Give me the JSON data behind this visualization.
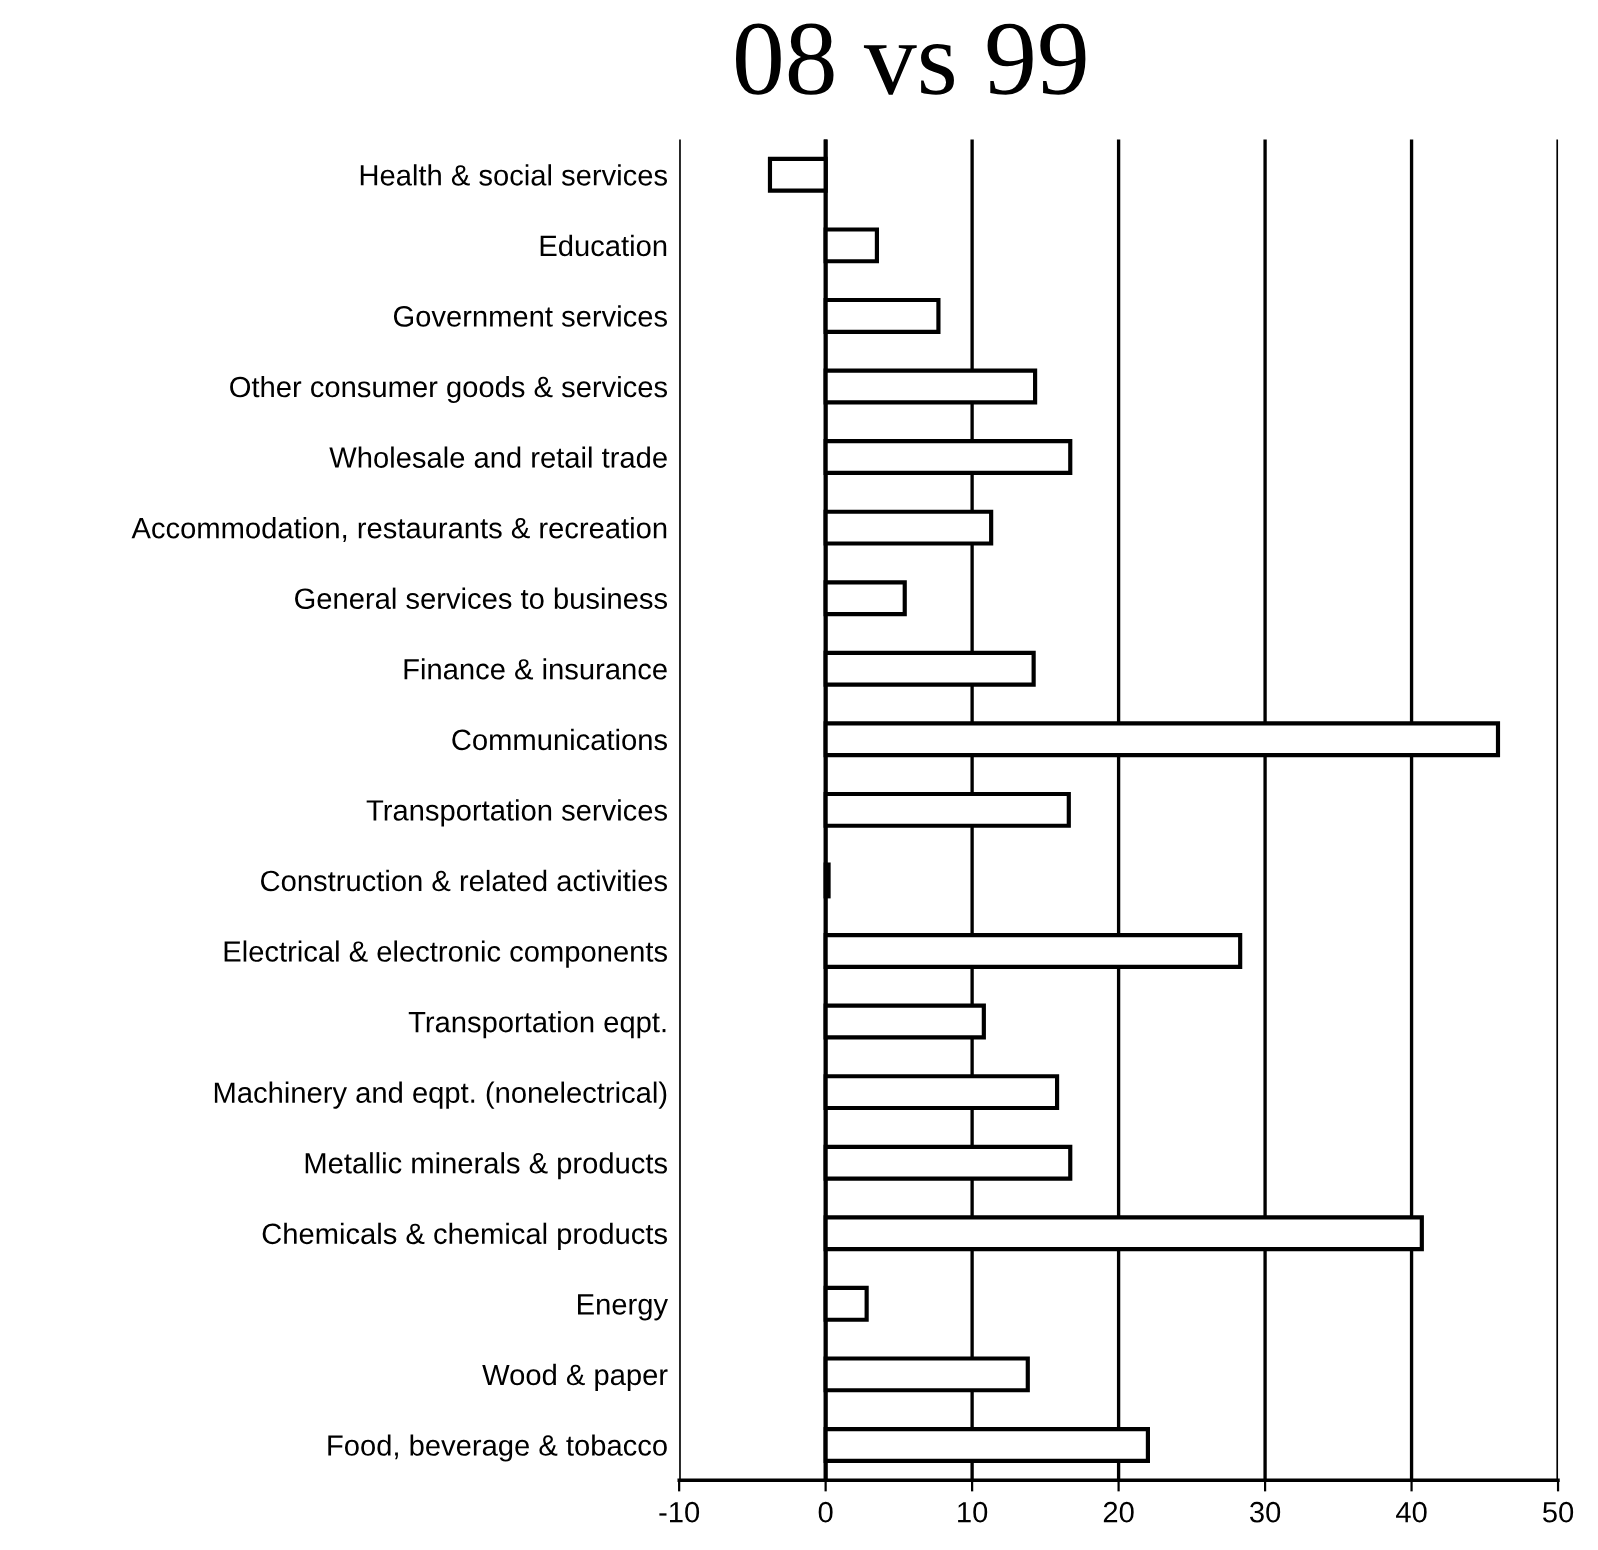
{
  "chart_data": {
    "type": "bar",
    "title": "08 vs 99",
    "orientation": "horizontal",
    "categories": [
      "Health & social services",
      "Education",
      "Government services",
      "Other consumer goods & services",
      "Wholesale and retail trade",
      "Accommodation, restaurants & recreation",
      "General services to business",
      "Finance & insurance",
      "Communications",
      "Transportation services",
      "Construction & related activities",
      "Electrical & electronic components",
      "Transportation eqpt.",
      "Machinery and eqpt. (nonelectrical)",
      "Metallic minerals & products",
      "Chemicals & chemical products",
      "Energy",
      "Wood & paper",
      "Food, beverage & tobacco"
    ],
    "values": [
      -3.8,
      3.5,
      7.7,
      14.3,
      16.7,
      11.3,
      5.4,
      14.2,
      45.9,
      16.6,
      0.2,
      28.3,
      10.8,
      15.8,
      16.7,
      40.7,
      2.8,
      13.8,
      22.0
    ],
    "color": "#ffffff",
    "xlim": [
      -10,
      50
    ],
    "xticks": [
      -10,
      0,
      10,
      20,
      30,
      40,
      50
    ],
    "grid": "x"
  }
}
